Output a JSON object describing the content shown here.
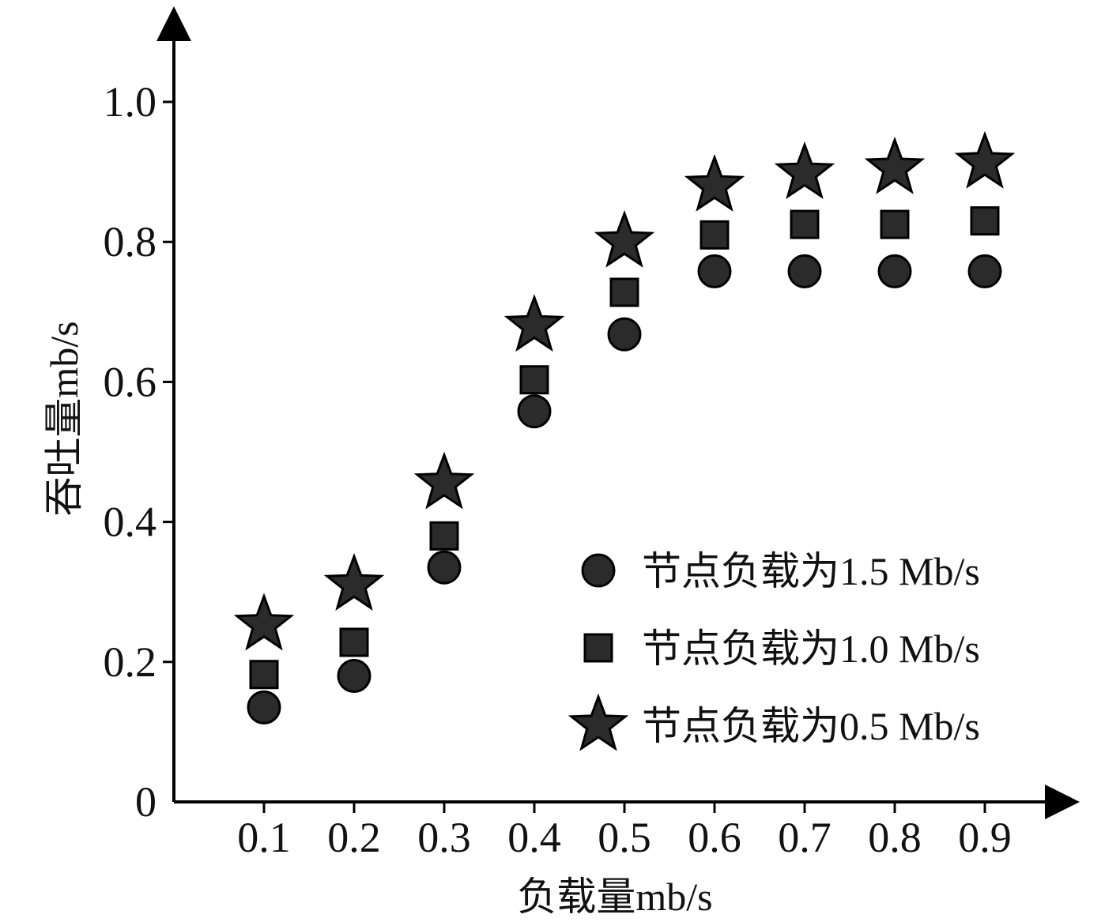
{
  "chart_data": {
    "type": "scatter",
    "xlabel": "负载量mb/s",
    "ylabel": "吞吐量mb/s",
    "x": [
      0.1,
      0.2,
      0.3,
      0.4,
      0.5,
      0.6,
      0.7,
      0.8,
      0.9
    ],
    "x_tick_labels": [
      "0.1",
      "0.2",
      "0.3",
      "0.4",
      "0.5",
      "0.6",
      "0.7",
      "0.8",
      "0.9"
    ],
    "y_ticks": [
      0,
      0.2,
      0.4,
      0.6,
      0.8,
      1.0
    ],
    "y_tick_labels": [
      "0",
      "0.2",
      "0.4",
      "0.6",
      "0.8",
      "1.0"
    ],
    "xlim": [
      0,
      1.0
    ],
    "ylim": [
      0,
      1.0
    ],
    "grid": false,
    "legend_position": "bottom-right",
    "marker_color": "#2b2b2b",
    "series": [
      {
        "name": "节点负载为1.5 Mb/s",
        "marker": "circle",
        "values": [
          0.135,
          0.18,
          0.335,
          0.558,
          0.668,
          0.758,
          0.758,
          0.758,
          0.758
        ]
      },
      {
        "name": "节点负载为1.0 Mb/s",
        "marker": "square",
        "values": [
          0.182,
          0.228,
          0.38,
          0.603,
          0.728,
          0.81,
          0.825,
          0.825,
          0.83
        ]
      },
      {
        "name": "节点负载为0.5 Mb/s",
        "marker": "star",
        "values": [
          0.253,
          0.31,
          0.455,
          0.68,
          0.8,
          0.88,
          0.898,
          0.905,
          0.913
        ]
      }
    ]
  }
}
